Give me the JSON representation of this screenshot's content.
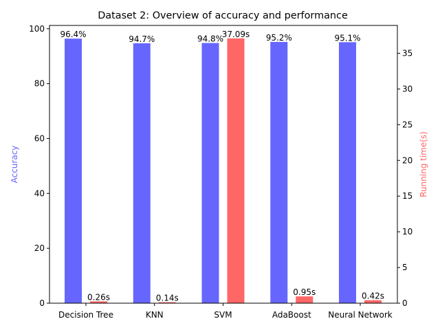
{
  "chart_data": {
    "type": "bar",
    "title": "Dataset 2: Overview of accuracy and performance",
    "categories": [
      "Decision Tree",
      "KNN",
      "SVM",
      "AdaBoost",
      "Neural Network"
    ],
    "series": [
      {
        "name": "Accuracy",
        "axis": "left",
        "color": "#6666ff",
        "values": [
          96.4,
          94.7,
          94.8,
          95.2,
          95.1
        ],
        "labels": [
          "96.4%",
          "94.7%",
          "94.8%",
          "95.2%",
          "95.1%"
        ]
      },
      {
        "name": "Running time(s)",
        "axis": "right",
        "color": "#ff6666",
        "values": [
          0.26,
          0.14,
          37.09,
          0.95,
          0.42
        ],
        "labels": [
          "0.26s",
          "0.14s",
          "37.09s",
          "0.95s",
          "0.42s"
        ]
      }
    ],
    "ylabel": "Accuracy",
    "ylabel_color": "#6666ff",
    "ylim": [
      0,
      101.2
    ],
    "yticks": [
      0,
      20,
      40,
      60,
      80,
      100
    ],
    "y2label": "Running time(s)",
    "y2label_color": "#ff6666",
    "y2lim": [
      0,
      38.9
    ],
    "y2ticks": [
      0,
      5,
      10,
      15,
      20,
      25,
      30,
      35
    ],
    "grid": false,
    "legend": "none"
  }
}
